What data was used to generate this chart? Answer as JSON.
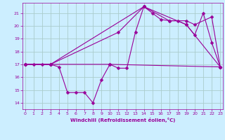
{
  "xlabel": "Windchill (Refroidissement éolien,°C)",
  "background_color": "#cceeff",
  "grid_color": "#aacccc",
  "line_color": "#990099",
  "x_ticks": [
    0,
    1,
    2,
    3,
    4,
    5,
    6,
    7,
    8,
    9,
    10,
    11,
    12,
    13,
    14,
    15,
    16,
    17,
    18,
    19,
    20,
    21,
    22,
    23
  ],
  "y_ticks": [
    14,
    15,
    16,
    17,
    18,
    19,
    20,
    21
  ],
  "xlim": [
    -0.3,
    23.3
  ],
  "ylim": [
    13.5,
    21.8
  ],
  "series1_x": [
    0,
    1,
    2,
    3,
    4,
    5,
    6,
    7,
    8,
    9,
    10,
    11,
    12,
    13,
    14,
    15,
    16,
    17,
    18,
    19,
    20,
    21,
    22,
    23
  ],
  "series1_y": [
    17,
    17,
    17,
    17,
    16.8,
    14.8,
    14.8,
    14.8,
    14.0,
    15.8,
    17.0,
    16.7,
    16.7,
    19.5,
    21.5,
    21.0,
    20.5,
    20.4,
    20.4,
    20.1,
    19.3,
    21.0,
    18.7,
    16.8
  ],
  "series2_x": [
    0,
    3,
    10,
    23
  ],
  "series2_y": [
    17,
    17,
    17,
    16.8
  ],
  "series3_x": [
    0,
    3,
    11,
    14,
    17,
    19,
    20,
    22,
    23
  ],
  "series3_y": [
    17,
    17,
    19.5,
    21.5,
    20.4,
    20.4,
    20.1,
    20.7,
    16.8
  ],
  "series4_x": [
    0,
    3,
    14,
    19,
    23
  ],
  "series4_y": [
    17,
    17,
    21.5,
    20.1,
    16.8
  ]
}
